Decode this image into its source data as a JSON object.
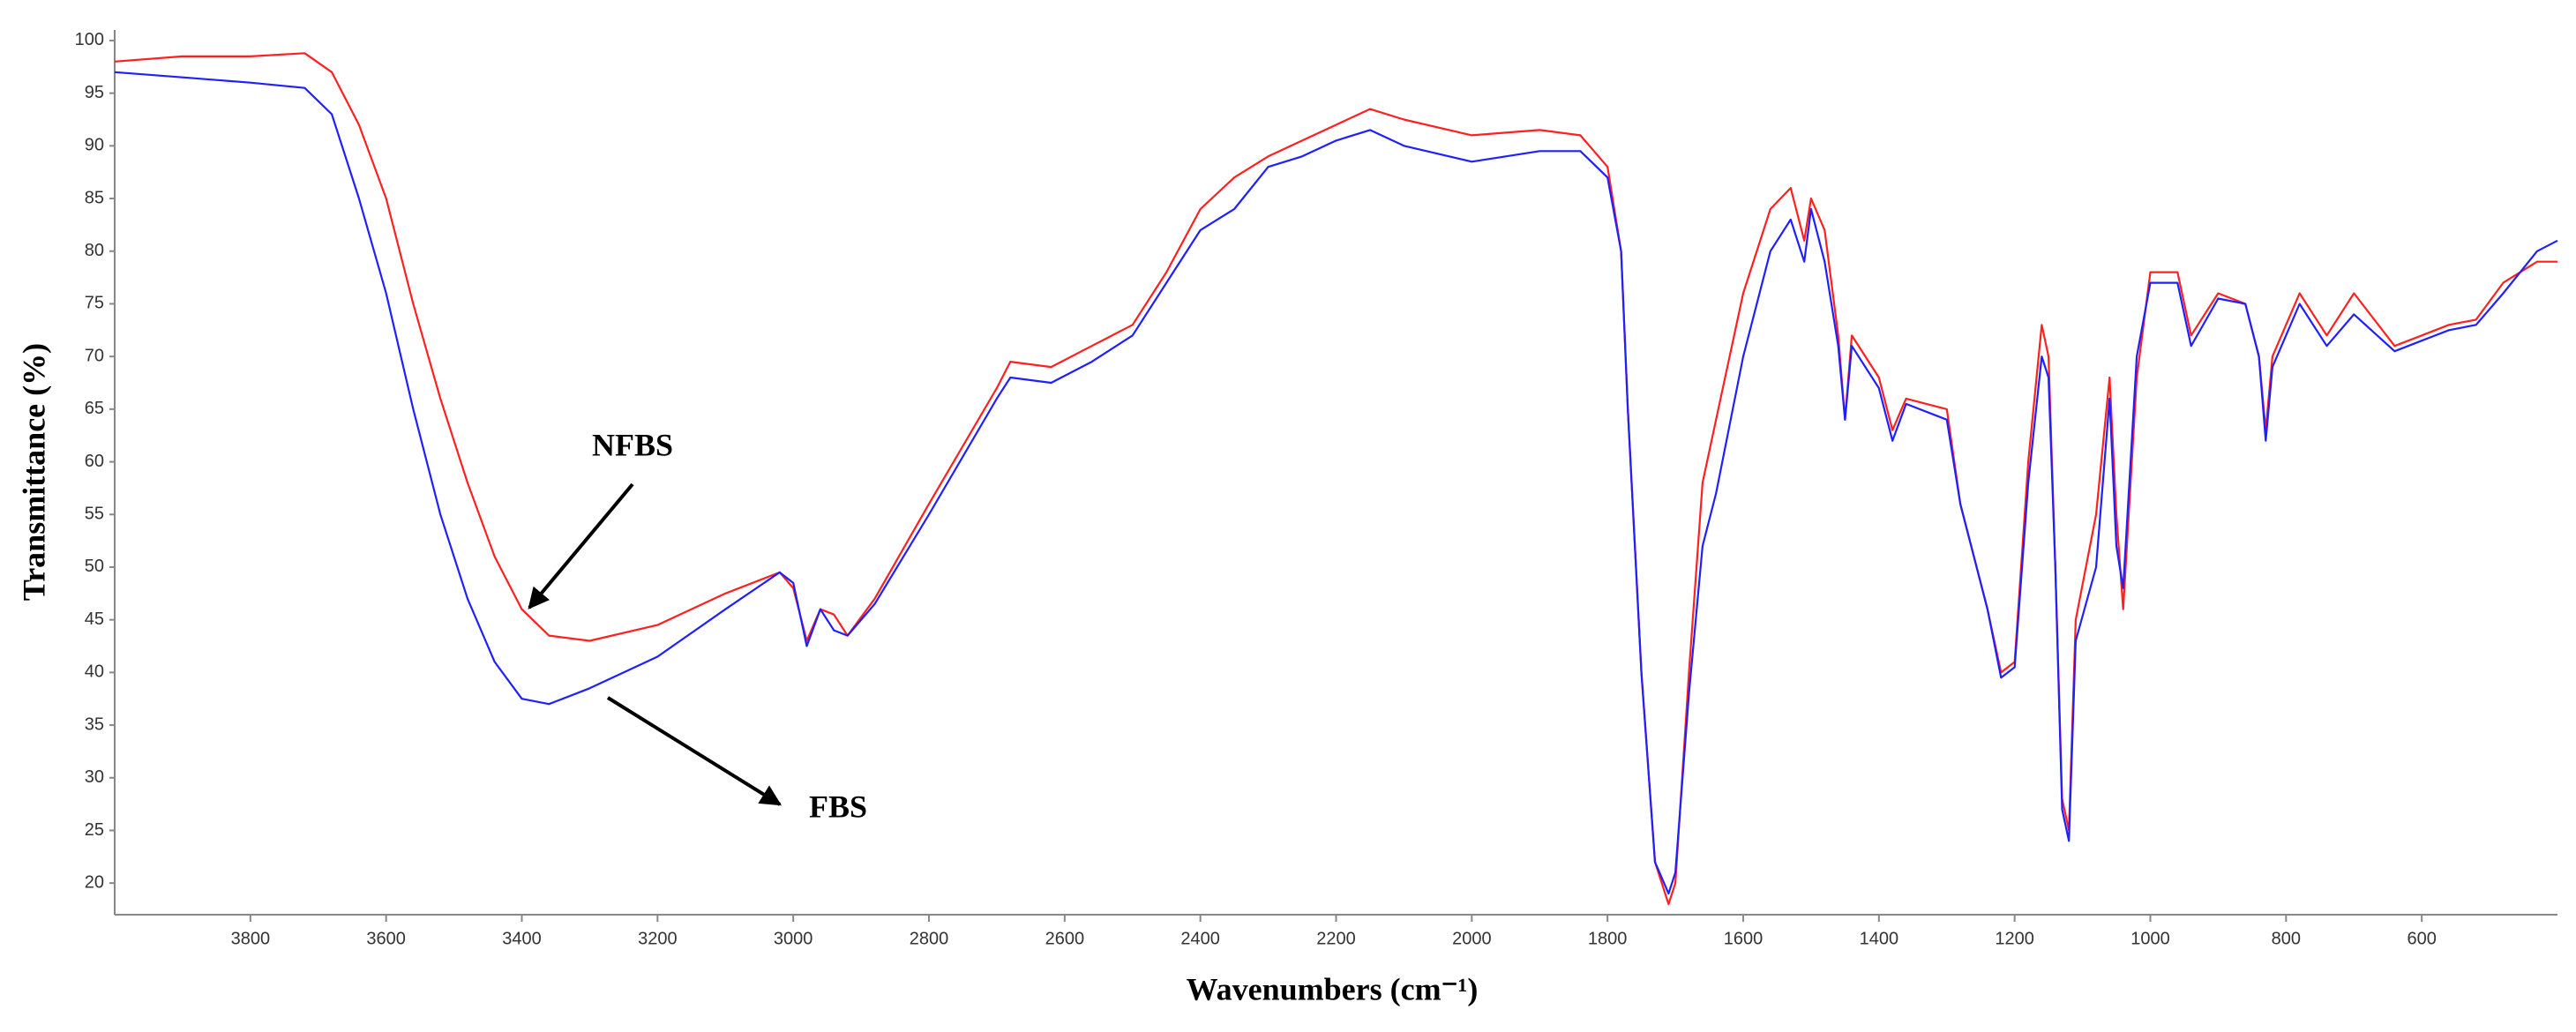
{
  "chart_data": {
    "type": "line",
    "x_label": "Wavenumbers (cm⁻¹)",
    "y_label": "Transmittance (%)",
    "x": [
      4000,
      3900,
      3800,
      3720,
      3680,
      3640,
      3600,
      3560,
      3520,
      3480,
      3440,
      3400,
      3360,
      3300,
      3200,
      3100,
      3020,
      3000,
      2980,
      2960,
      2940,
      2920,
      2880,
      2800,
      2700,
      2680,
      2620,
      2560,
      2500,
      2450,
      2400,
      2350,
      2300,
      2250,
      2200,
      2150,
      2100,
      2000,
      1900,
      1840,
      1800,
      1780,
      1770,
      1750,
      1730,
      1710,
      1700,
      1680,
      1660,
      1640,
      1600,
      1560,
      1530,
      1510,
      1500,
      1480,
      1460,
      1450,
      1440,
      1400,
      1380,
      1360,
      1300,
      1280,
      1240,
      1220,
      1200,
      1180,
      1160,
      1150,
      1140,
      1130,
      1120,
      1110,
      1080,
      1060,
      1050,
      1040,
      1020,
      1000,
      960,
      940,
      900,
      860,
      840,
      830,
      820,
      780,
      740,
      700,
      640,
      600,
      560,
      520,
      480,
      430,
      400
    ],
    "series": [
      {
        "name": "NFBS",
        "color": "#ff2020",
        "values": [
          98,
          98.5,
          98.5,
          98.8,
          97,
          92,
          85,
          75,
          66,
          58,
          51,
          46,
          43.5,
          43,
          44.5,
          47.5,
          49.5,
          48,
          43,
          46,
          45.5,
          43.5,
          47,
          56,
          67,
          69.5,
          69,
          71,
          73,
          78,
          84,
          87,
          89,
          90.5,
          92,
          93.5,
          92.5,
          91,
          91.5,
          91,
          88,
          80,
          65,
          40,
          22,
          18,
          20,
          40,
          58,
          64,
          76,
          84,
          86,
          81,
          85,
          82,
          72,
          64,
          72,
          68,
          63,
          66,
          65,
          56,
          46,
          40,
          41,
          60,
          73,
          70,
          50,
          28,
          25,
          45,
          55,
          68,
          55,
          46,
          68,
          78,
          78,
          72,
          76,
          75,
          70,
          63,
          70,
          76,
          72,
          76,
          71,
          72,
          73,
          73.5,
          77,
          79,
          79
        ]
      },
      {
        "name": "FBS",
        "color": "#2020ff",
        "values": [
          97,
          96.5,
          96,
          95.5,
          93,
          85,
          76,
          65,
          55,
          47,
          41,
          37.5,
          37,
          38.5,
          41.5,
          46,
          49.5,
          48.5,
          42.5,
          46,
          44,
          43.5,
          46.5,
          55,
          66,
          68,
          67.5,
          69.5,
          72,
          77,
          82,
          84,
          88,
          89,
          90.5,
          91.5,
          90,
          88.5,
          89.5,
          89.5,
          87,
          80,
          65,
          40,
          22,
          19,
          21,
          38,
          52,
          57,
          70,
          80,
          83,
          79,
          84,
          79,
          71,
          64,
          71,
          67,
          62,
          65.5,
          64,
          56,
          46,
          39.5,
          40.5,
          58,
          70,
          68,
          50,
          27,
          24,
          43,
          50,
          66,
          52,
          48,
          70,
          77,
          77,
          71,
          75.5,
          75,
          70,
          62,
          69,
          75,
          71,
          74,
          70.5,
          71.5,
          72.5,
          73,
          76,
          80,
          81
        ]
      }
    ],
    "xlim": [
      4000,
      400
    ],
    "ylim": [
      17,
      101
    ],
    "xticks": [
      3800,
      3600,
      3400,
      3200,
      3000,
      2800,
      2600,
      2400,
      2200,
      2000,
      1800,
      1600,
      1400,
      1200,
      1000,
      800,
      600
    ],
    "yticks": [
      20,
      25,
      30,
      35,
      40,
      45,
      50,
      55,
      60,
      65,
      70,
      75,
      80,
      85,
      90,
      95,
      100
    ],
    "grid": false
  }
}
